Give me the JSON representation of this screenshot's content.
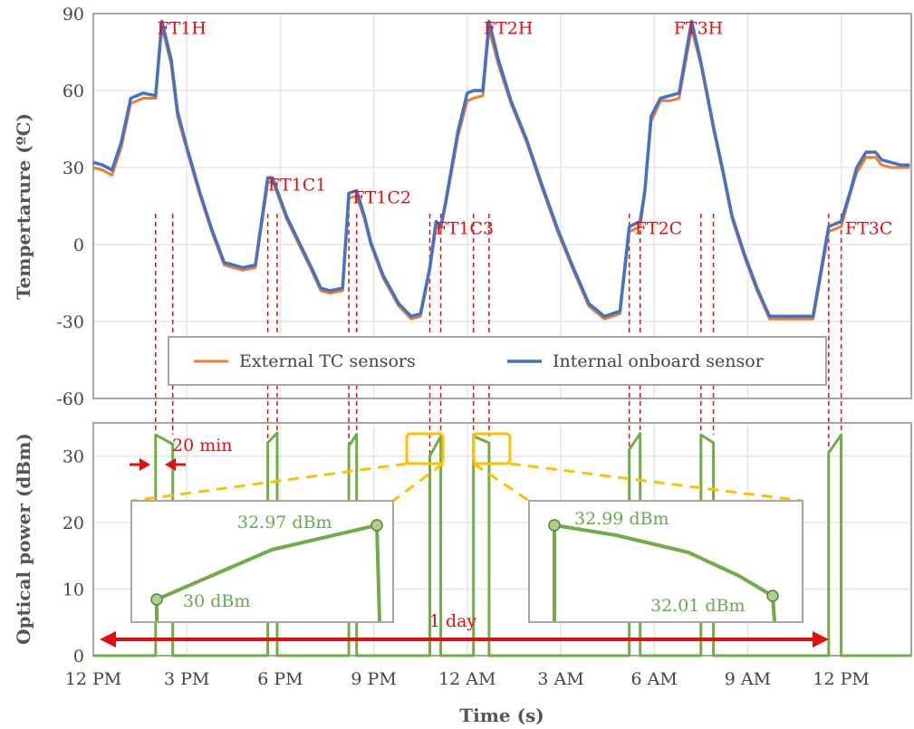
{
  "chart_data": [
    {
      "type": "line",
      "ylabel": "Tempertarure (ºC)",
      "xlabel": "",
      "ylim": [
        -60,
        90
      ],
      "yticks": [
        "90",
        "60",
        "30",
        "0",
        "-30",
        "-60"
      ],
      "x_hours_note": "",
      "series": [
        {
          "name": "External TC sensors",
          "color": "#ed7d31",
          "x": [
            0,
            0.3,
            0.6,
            0.9,
            1.2,
            1.6,
            2.0,
            2.2,
            2.5,
            2.7,
            3.0,
            3.4,
            3.8,
            4.2,
            4.8,
            5.2,
            5.6,
            5.75,
            5.9,
            6.2,
            6.6,
            7.0,
            7.3,
            7.6,
            8.0,
            8.2,
            8.45,
            8.7,
            8.9,
            9.3,
            9.8,
            10.2,
            10.5,
            10.8,
            11.0,
            11.15,
            11.3,
            11.7,
            12.0,
            12.2,
            12.5,
            12.7,
            13.0,
            13.4,
            13.9,
            14.4,
            14.9,
            15.4,
            15.9,
            16.4,
            16.9,
            17.2,
            17.55,
            17.7,
            17.9,
            18.2,
            18.5,
            18.8,
            19.2,
            19.5,
            19.9,
            20.2,
            20.5,
            20.9,
            21.3,
            21.7,
            22.2,
            22.6,
            23.1,
            23.6,
            24.0,
            24.3,
            24.5,
            24.8,
            25.1,
            25.3,
            25.6,
            25.9,
            26.2
          ],
          "values": [
            30,
            29,
            27,
            38,
            55,
            57,
            57,
            85,
            70,
            50,
            37,
            20,
            5,
            -8,
            -10,
            -9,
            24,
            25,
            20,
            10,
            0,
            -10,
            -18,
            -19,
            -18,
            18,
            19,
            10,
            0,
            -13,
            -24,
            -29,
            -28,
            -10,
            7,
            6,
            15,
            42,
            56,
            57,
            58,
            84,
            70,
            55,
            40,
            22,
            5,
            -10,
            -24,
            -29,
            -27,
            5,
            7,
            20,
            48,
            56,
            56,
            57,
            84,
            70,
            45,
            28,
            10,
            -5,
            -18,
            -29,
            -29,
            -29,
            -29,
            5,
            7,
            20,
            28,
            34,
            34,
            31,
            30,
            30,
            30
          ],
          "stroke_width": 3
        },
        {
          "name": "Internal onboard sensor",
          "color": "#4472c4",
          "x": [
            0,
            0.3,
            0.6,
            0.9,
            1.2,
            1.6,
            2.0,
            2.2,
            2.5,
            2.7,
            3.0,
            3.4,
            3.8,
            4.2,
            4.8,
            5.2,
            5.6,
            5.75,
            5.9,
            6.2,
            6.6,
            7.0,
            7.3,
            7.6,
            8.0,
            8.2,
            8.45,
            8.7,
            8.9,
            9.3,
            9.8,
            10.2,
            10.5,
            10.8,
            11.0,
            11.15,
            11.3,
            11.7,
            12.0,
            12.2,
            12.5,
            12.7,
            13.0,
            13.4,
            13.9,
            14.4,
            14.9,
            15.4,
            15.9,
            16.4,
            16.9,
            17.2,
            17.55,
            17.7,
            17.9,
            18.2,
            18.5,
            18.8,
            19.2,
            19.5,
            19.9,
            20.2,
            20.5,
            20.9,
            21.3,
            21.7,
            22.2,
            22.6,
            23.1,
            23.6,
            24.0,
            24.3,
            24.5,
            24.8,
            25.1,
            25.3,
            25.6,
            25.9,
            26.2
          ],
          "values": [
            32,
            31,
            29,
            40,
            57,
            59,
            58,
            87,
            72,
            52,
            38,
            21,
            6,
            -7,
            -9,
            -8,
            26,
            26,
            21,
            11,
            1,
            -9,
            -17,
            -18,
            -17,
            20,
            21,
            11,
            1,
            -12,
            -23,
            -28,
            -27,
            -9,
            9,
            7,
            16,
            44,
            59,
            60,
            60,
            87,
            72,
            56,
            41,
            23,
            6,
            -9,
            -23,
            -28,
            -26,
            7,
            9,
            21,
            50,
            57,
            58,
            59,
            87,
            71,
            46,
            29,
            11,
            -4,
            -17,
            -28,
            -28,
            -28,
            -28,
            7,
            9,
            21,
            30,
            36,
            36,
            33,
            32,
            31,
            31
          ],
          "stroke_width": 3.5
        }
      ],
      "annotations": [
        {
          "text": "FT1H",
          "x": 2.22,
          "y": 87
        },
        {
          "text": "FT1C1",
          "x": 5.78,
          "y": 26
        },
        {
          "text": "FT1C2",
          "x": 8.5,
          "y": 21
        },
        {
          "text": "FT1C3",
          "x": 11.15,
          "y": 9
        },
        {
          "text": "FT2H",
          "x": 12.7,
          "y": 87
        },
        {
          "text": "FT2C",
          "x": 17.55,
          "y": 9
        },
        {
          "text": "FT3H",
          "x": 18.8,
          "y": 87
        },
        {
          "text": "FT3C",
          "x": 24.3,
          "y": 9
        }
      ],
      "legend": {
        "placement": "bottom-center",
        "items": [
          "External TC sensors",
          "Internal onboard sensor"
        ]
      }
    },
    {
      "type": "line",
      "ylabel": "Optical power (dBm)",
      "xlabel": "Time (s)",
      "ylim": [
        0,
        35
      ],
      "yticks": [
        "0",
        "10",
        "20",
        "30"
      ],
      "xticks": [
        "12 PM",
        "3 PM",
        "6 PM",
        "9 PM",
        "12 AM",
        "3 AM",
        "6 AM",
        "9 AM",
        "12 PM"
      ],
      "color": "#70ad47",
      "pulses": [
        {
          "start": 2.0,
          "end": 2.55,
          "v_start": 33.2,
          "v_end": 31.8
        },
        {
          "start": 5.6,
          "end": 5.9,
          "v_start": 32.0,
          "v_end": 33.5
        },
        {
          "start": 8.2,
          "end": 8.45,
          "v_start": 31.5,
          "v_end": 33.3
        },
        {
          "start": 10.8,
          "end": 11.15,
          "v_start": 30.0,
          "v_end": 32.97
        },
        {
          "start": 12.2,
          "end": 12.7,
          "v_start": 32.99,
          "v_end": 32.01
        },
        {
          "start": 17.2,
          "end": 17.55,
          "v_start": 31.0,
          "v_end": 33.4
        },
        {
          "start": 19.5,
          "end": 19.9,
          "v_start": 33.2,
          "v_end": 32.0
        },
        {
          "start": 23.6,
          "end": 24.0,
          "v_start": 30.5,
          "v_end": 33.2
        }
      ],
      "annotations": [
        {
          "text": "20 min"
        },
        {
          "text": "1 day"
        }
      ],
      "insets": [
        {
          "values": [
            30,
            32.97
          ],
          "labels": [
            "30 dBm",
            "32.97 dBm"
          ]
        },
        {
          "values": [
            32.99,
            32.01
          ],
          "labels": [
            "32.99 dBm",
            "32.01 dBm"
          ]
        }
      ]
    }
  ],
  "colors": {
    "annotation": "#e01010",
    "inset_highlight": "#ffc000",
    "frame": "#a6a6a6"
  }
}
